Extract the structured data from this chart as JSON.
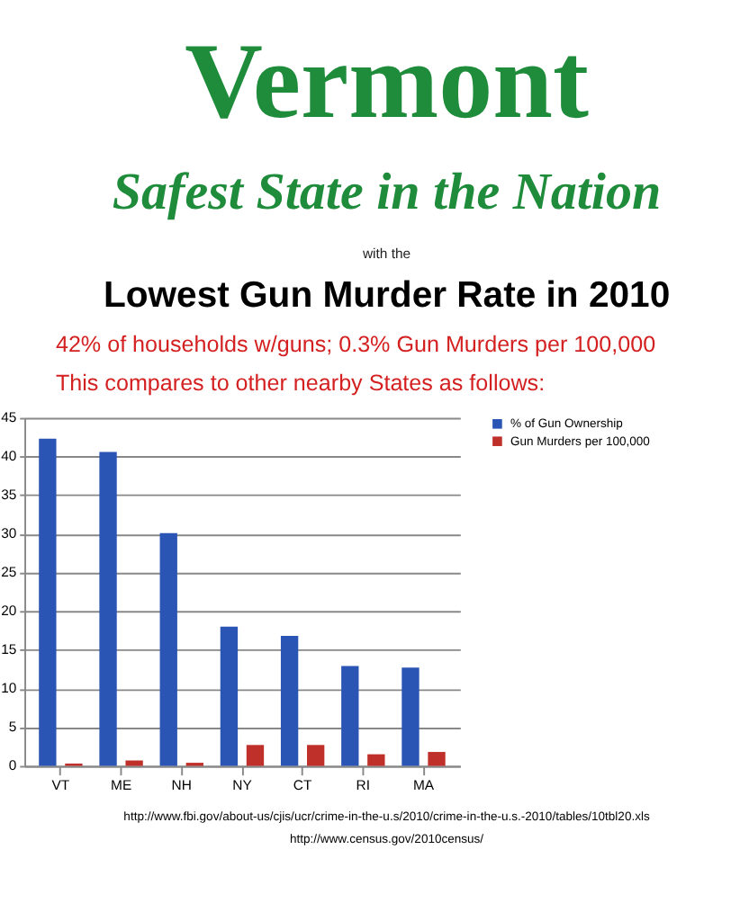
{
  "chart_data": {
    "type": "bar",
    "title": "Vermont",
    "subtitle": "Safest State in the Nation",
    "annotations": [
      "with the",
      "Lowest Gun Murder Rate in 2010",
      "42% of households w/guns; 0.3% Gun Murders per 100,000",
      "This compares to other nearby States as follows:",
      "http://www.fbi.gov/about-us/cjis/ucr/crime-in-the-u.s/2010/crime-in-the-u.s.-2010/tables/10tbl20.xls",
      "http://www.census.gov/2010census/"
    ],
    "categories": [
      "VT",
      "ME",
      "NH",
      "NY",
      "CT",
      "RI",
      "MA"
    ],
    "series": [
      {
        "name": "% of Gun Ownership",
        "color": "#2b55b5",
        "values": [
          42.3,
          40.6,
          30.1,
          18.0,
          16.8,
          12.9,
          12.7
        ]
      },
      {
        "name": "Gun Murders per 100,000",
        "color": "#c0302a",
        "values": [
          0.3,
          0.7,
          0.4,
          2.7,
          2.7,
          1.5,
          1.8
        ]
      }
    ],
    "ylim": [
      0,
      45
    ],
    "yticks": [
      0,
      5,
      10,
      15,
      20,
      25,
      30,
      35,
      40,
      45
    ],
    "grid": "y",
    "legend": "right"
  }
}
